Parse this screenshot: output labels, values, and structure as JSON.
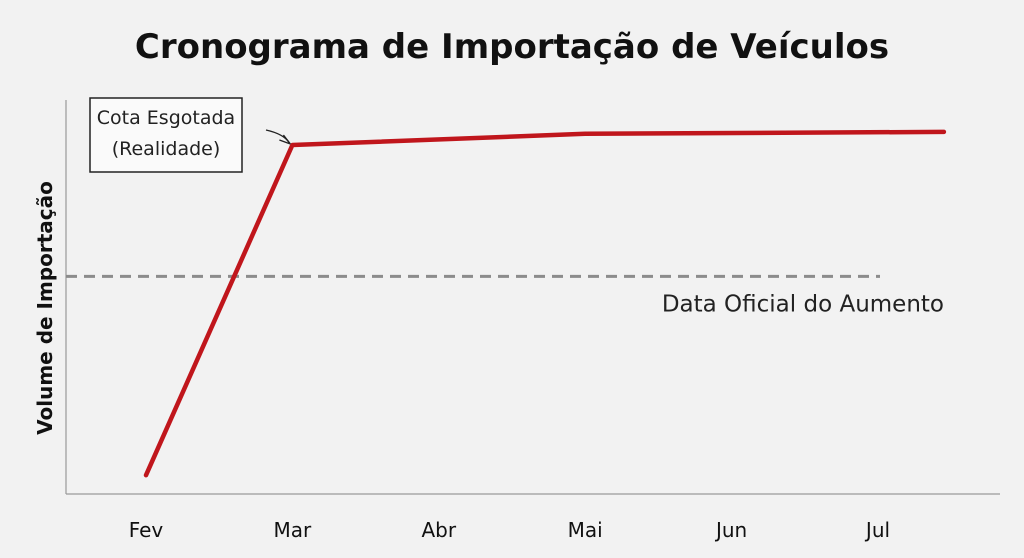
{
  "chart_data": {
    "type": "line",
    "title": "Cronograma de Importação de Veículos",
    "xlabel": "",
    "ylabel": "Volume de Importação",
    "categories": [
      "Fev",
      "Mar",
      "Abr",
      "Mai",
      "Jun",
      "Jul"
    ],
    "series": [
      {
        "color": "#c0161c",
        "x": [
          0,
          1,
          3,
          5.45
        ],
        "values": [
          0.05,
          0.93,
          0.96,
          0.965
        ]
      }
    ],
    "ylim": [
      0,
      1.05
    ],
    "grid": false,
    "reference_line": {
      "value": 0.58,
      "style": "dashed",
      "color": "#8c8c8c",
      "label": "Data Oficial do Aumento"
    },
    "annotation": {
      "lines": [
        "Cota Esgotada",
        "(Realidade)"
      ],
      "target_point": [
        1,
        0.93
      ]
    }
  }
}
